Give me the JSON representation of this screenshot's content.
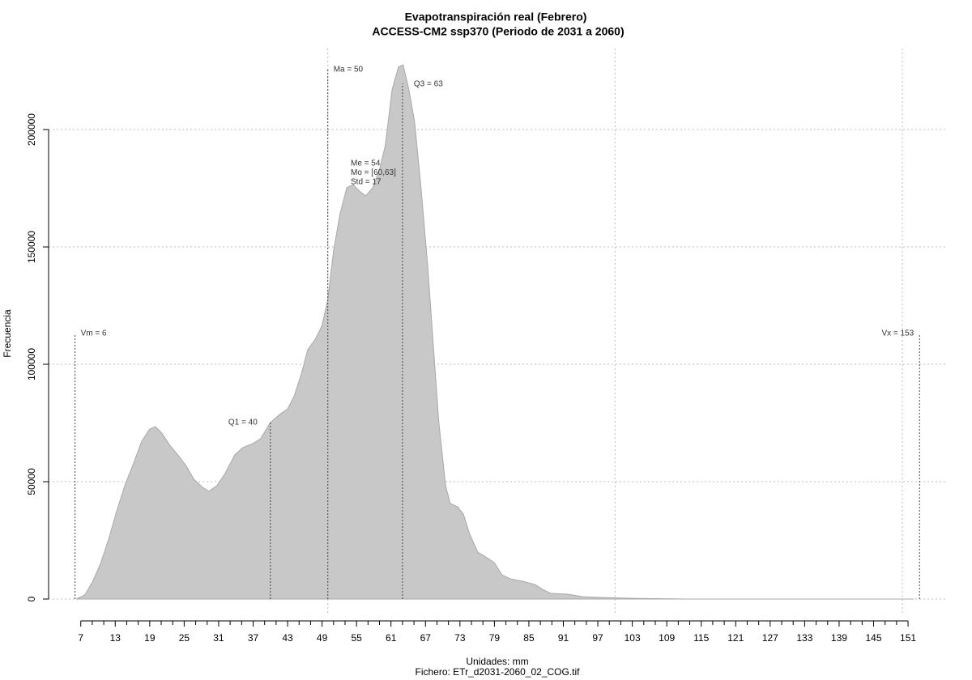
{
  "chart_data": {
    "type": "area",
    "title": "Evapotranspiración real (Febrero)",
    "subtitle": "ACCESS-CM2 ssp370 (Periodo de 2031 a 2060)",
    "x_label": "Unidades: mm",
    "caption": "Fichero: ETr_d2031-2060_02_COG.tif",
    "y_label": "Frecuencia",
    "color": "#c8c8c8",
    "x": [
      6.2,
      7.7,
      9.1,
      10.5,
      11.9,
      13.3,
      14.8,
      16.2,
      17.6,
      19.0,
      20.0,
      21.1,
      22.5,
      23.9,
      25.3,
      26.7,
      28.2,
      29.3,
      30.7,
      32.1,
      33.8,
      35.2,
      36.9,
      38.3,
      40.0,
      41.6,
      43.0,
      44.1,
      45.4,
      46.5,
      47.9,
      49.0,
      50.0,
      51.0,
      52.1,
      53.3,
      54.4,
      55.5,
      56.6,
      57.8,
      58.9,
      60.0,
      61.2,
      62.3,
      63.1,
      64.1,
      65.1,
      66.2,
      67.4,
      68.4,
      69.3,
      70.5,
      71.3,
      72.6,
      73.6,
      74.7,
      76.1,
      77.5,
      79.0,
      80.3,
      81.8,
      83.9,
      86.0,
      87.4,
      88.8,
      91.6,
      94.4,
      97.3,
      102.9,
      112.8,
      152.0
    ],
    "values": [
      0,
      1700,
      7600,
      15500,
      25900,
      37900,
      49300,
      57900,
      67200,
      72400,
      73400,
      70700,
      65500,
      61400,
      56900,
      51000,
      47600,
      45900,
      48300,
      53400,
      61400,
      64500,
      66200,
      68300,
      75200,
      78600,
      81000,
      86200,
      95900,
      106200,
      111000,
      116600,
      127600,
      148300,
      163800,
      175200,
      176600,
      173800,
      171700,
      175200,
      182100,
      193100,
      217200,
      226600,
      227600,
      217200,
      203400,
      175900,
      141400,
      106900,
      75900,
      48300,
      40700,
      39300,
      36200,
      27600,
      20000,
      17900,
      15500,
      10300,
      8600,
      7600,
      6200,
      4100,
      2400,
      2100,
      1000,
      700,
      300,
      0,
      0
    ],
    "xlim": [
      1.4,
      157.9
    ],
    "ylim": [
      -6900,
      234500
    ],
    "xticks": [
      7,
      13,
      19,
      25,
      31,
      37,
      43,
      49,
      55,
      61,
      67,
      73,
      79,
      85,
      91,
      97,
      103,
      109,
      115,
      121,
      127,
      133,
      139,
      145,
      151
    ],
    "xminorticks": [
      9,
      11,
      15,
      17,
      21,
      23,
      27,
      29,
      33,
      35,
      39,
      41,
      45,
      47,
      51,
      53,
      57,
      59,
      63,
      65,
      69,
      71,
      75,
      77,
      81,
      83,
      87,
      89,
      93,
      95,
      99,
      101,
      105,
      107,
      111,
      113,
      117,
      119,
      123,
      125,
      129,
      131,
      135,
      137,
      141,
      143,
      147,
      149
    ],
    "yticks": [
      0,
      50000,
      100000,
      150000,
      200000
    ],
    "xgrid": [
      50,
      100,
      150
    ],
    "grid": true,
    "markers": [
      {
        "label": "Vm = 6",
        "value": 6
      },
      {
        "label": "Q1 = 40",
        "value": 40
      },
      {
        "label": "Ma = 50",
        "value": 50
      },
      {
        "label": "Q3 = 63",
        "value": 63
      },
      {
        "label": "Vx = 153",
        "value": 153
      }
    ],
    "stats": [
      "Me = 54",
      "Mo = [60,63]",
      "Std = 17"
    ]
  }
}
